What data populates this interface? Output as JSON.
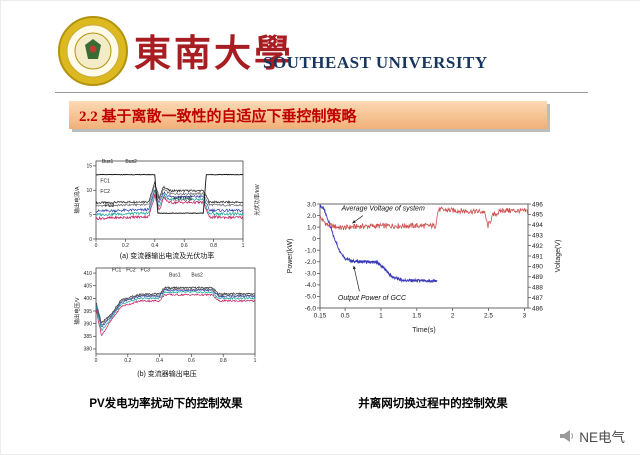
{
  "header": {
    "university_cn": "東南大學",
    "university_en": "SOUTHEAST UNIVERSITY"
  },
  "slide_title": "2.2 基于离散一致性的自适应下垂控制策略",
  "captions": {
    "left_bold": "PV发电功率扰动下的控制效果",
    "right_bold": "并离网切换过程中的控制效果"
  },
  "watermark": {
    "label": "NE电气"
  },
  "colors": {
    "title_text": "#c00000",
    "title_bg": "#f1b078",
    "cn_red": "#a81d22",
    "en_blue": "#17365d",
    "power_blue": "#3a3ab8",
    "voltage_red": "#c9504d"
  },
  "chart_data": [
    {
      "id": "chartA",
      "type": "line",
      "caption": "(a) 变流器输出电流及光伏功率",
      "xlabel": "",
      "ylabel": "输出电流/A",
      "y2label": "光伏功率/kW",
      "xlim": [
        0,
        1
      ],
      "ylim": [
        0,
        16
      ],
      "xticks": [
        0,
        0.2,
        0.4,
        0.6,
        0.8,
        1
      ],
      "xtick_labels": [
        "0",
        "0.2",
        "0.4",
        "0.6",
        "0.8",
        "1"
      ],
      "yticks": [
        0,
        5,
        10,
        15
      ],
      "ytick_labels": [
        "0",
        "5",
        "10",
        "15"
      ],
      "series": [
        {
          "name": "Bus1",
          "color": "#2a2a2a",
          "noise": 0.22,
          "width": 0.7,
          "points": [
            [
              0,
              7.4
            ],
            [
              0.36,
              7.7
            ],
            [
              0.4,
              11.6
            ],
            [
              0.43,
              8.4
            ],
            [
              0.46,
              10.8
            ],
            [
              0.5,
              9.9
            ],
            [
              0.73,
              9.9
            ],
            [
              0.77,
              7.6
            ],
            [
              1,
              7.5
            ]
          ]
        },
        {
          "name": "Bus2",
          "color": "#6a6a6a",
          "noise": 0.22,
          "width": 0.7,
          "points": [
            [
              0,
              6.8
            ],
            [
              0.36,
              7.1
            ],
            [
              0.4,
              11.0
            ],
            [
              0.43,
              7.9
            ],
            [
              0.46,
              10.2
            ],
            [
              0.5,
              9.3
            ],
            [
              0.73,
              9.3
            ],
            [
              0.77,
              7.0
            ],
            [
              1,
              6.9
            ]
          ]
        },
        {
          "name": "FC1",
          "color": "#3344aa",
          "noise": 0.28,
          "width": 0.7,
          "points": [
            [
              0,
              5.7
            ],
            [
              0.36,
              6.0
            ],
            [
              0.4,
              10.3
            ],
            [
              0.43,
              7.2
            ],
            [
              0.46,
              9.6
            ],
            [
              0.5,
              8.7
            ],
            [
              0.73,
              8.7
            ],
            [
              0.77,
              5.9
            ],
            [
              1,
              5.8
            ]
          ]
        },
        {
          "name": "FC2",
          "color": "#17a398",
          "noise": 0.28,
          "width": 0.7,
          "points": [
            [
              0,
              5.0
            ],
            [
              0.36,
              5.3
            ],
            [
              0.4,
              9.7
            ],
            [
              0.43,
              6.5
            ],
            [
              0.46,
              9.0
            ],
            [
              0.5,
              8.1
            ],
            [
              0.73,
              8.1
            ],
            [
              0.77,
              5.2
            ],
            [
              1,
              5.1
            ]
          ]
        },
        {
          "name": "FC3",
          "color": "#c2185b",
          "noise": 0.28,
          "width": 0.7,
          "points": [
            [
              0,
              4.2
            ],
            [
              0.36,
              4.6
            ],
            [
              0.4,
              9.1
            ],
            [
              0.43,
              5.8
            ],
            [
              0.46,
              8.4
            ],
            [
              0.5,
              7.5
            ],
            [
              0.73,
              7.5
            ],
            [
              0.77,
              4.5
            ],
            [
              1,
              4.4
            ]
          ]
        },
        {
          "name": "光伏功率",
          "color": "#111111",
          "noise": 0.06,
          "width": 0.9,
          "points": [
            [
              0,
              13.2
            ],
            [
              0.4,
              13.2
            ],
            [
              0.42,
              5.3
            ],
            [
              0.73,
              5.3
            ],
            [
              0.75,
              13.2
            ],
            [
              1,
              13.2
            ]
          ]
        }
      ],
      "labels": [
        {
          "text": "Bus1",
          "x": 0.04,
          "y": 15.6,
          "color": "#222222"
        },
        {
          "text": "Bus2",
          "x": 0.2,
          "y": 15.6,
          "color": "#222222"
        },
        {
          "text": "FC1",
          "x": 0.03,
          "y": 11.6,
          "color": "#222222"
        },
        {
          "text": "FC2",
          "x": 0.03,
          "y": 9.4,
          "color": "#222222"
        },
        {
          "text": "FC3",
          "x": 0.06,
          "y": 6.6,
          "color": "#222222"
        },
        {
          "text": "光伏功率",
          "x": 0.52,
          "y": 7.9,
          "color": "#111111"
        }
      ]
    },
    {
      "id": "chartB",
      "type": "line",
      "caption": "(b) 变流器输出电压",
      "xlabel": "",
      "ylabel": "输出电压/V",
      "xlim": [
        0,
        1
      ],
      "ylim": [
        378,
        412
      ],
      "xticks": [
        0,
        0.2,
        0.4,
        0.6,
        0.8,
        1
      ],
      "xtick_labels": [
        "0",
        "0.2",
        "0.4",
        "0.6",
        "0.8",
        "1"
      ],
      "yticks": [
        380,
        385,
        390,
        395,
        400,
        405,
        410
      ],
      "ytick_labels": [
        "380",
        "385",
        "390",
        "395",
        "400",
        "405",
        "410"
      ],
      "series": [
        {
          "name": "Bus1",
          "color": "#2a2a2a",
          "noise": 0.35,
          "width": 0.7,
          "points": [
            [
              0,
              398.6
            ],
            [
              0.035,
              390.2
            ],
            [
              0.09,
              393.4
            ],
            [
              0.16,
              399.4
            ],
            [
              0.28,
              401.8
            ],
            [
              0.4,
              401.8
            ],
            [
              0.43,
              404.2
            ],
            [
              0.73,
              404.2
            ],
            [
              0.77,
              401.8
            ],
            [
              1,
              401.8
            ]
          ]
        },
        {
          "name": "Bus2",
          "color": "#6a6a6a",
          "noise": 0.35,
          "width": 0.7,
          "points": [
            [
              0,
              398.0
            ],
            [
              0.035,
              389.4
            ],
            [
              0.09,
              392.9
            ],
            [
              0.16,
              398.9
            ],
            [
              0.28,
              401.2
            ],
            [
              0.4,
              401.2
            ],
            [
              0.43,
              403.6
            ],
            [
              0.73,
              403.6
            ],
            [
              0.77,
              401.2
            ],
            [
              1,
              401.2
            ]
          ]
        },
        {
          "name": "FC1",
          "color": "#3344aa",
          "noise": 0.35,
          "width": 0.7,
          "points": [
            [
              0,
              397.5
            ],
            [
              0.035,
              388.5
            ],
            [
              0.09,
              392.5
            ],
            [
              0.16,
              398.5
            ],
            [
              0.28,
              400.8
            ],
            [
              0.4,
              400.8
            ],
            [
              0.43,
              403.2
            ],
            [
              0.73,
              403.2
            ],
            [
              0.77,
              400.8
            ],
            [
              1,
              400.8
            ]
          ]
        },
        {
          "name": "FC2",
          "color": "#17a398",
          "noise": 0.35,
          "width": 0.7,
          "points": [
            [
              0,
              396.8
            ],
            [
              0.035,
              387.3
            ],
            [
              0.09,
              391.8
            ],
            [
              0.16,
              397.8
            ],
            [
              0.28,
              400.0
            ],
            [
              0.4,
              400.0
            ],
            [
              0.43,
              402.4
            ],
            [
              0.73,
              402.4
            ],
            [
              0.77,
              400.0
            ],
            [
              1,
              400.0
            ]
          ]
        },
        {
          "name": "FC3",
          "color": "#c2185b",
          "noise": 0.35,
          "width": 0.7,
          "points": [
            [
              0,
              395.8
            ],
            [
              0.035,
              385.2
            ],
            [
              0.09,
              390.8
            ],
            [
              0.16,
              396.8
            ],
            [
              0.28,
              399.0
            ],
            [
              0.4,
              399.0
            ],
            [
              0.43,
              401.4
            ],
            [
              0.73,
              401.4
            ],
            [
              0.77,
              399.0
            ],
            [
              1,
              399.0
            ]
          ]
        }
      ],
      "labels": [
        {
          "text": "FC1",
          "x": 0.1,
          "y": 410.6,
          "color": "#222222"
        },
        {
          "text": "FC2",
          "x": 0.19,
          "y": 410.6,
          "color": "#222222"
        },
        {
          "text": "FC3",
          "x": 0.28,
          "y": 410.6,
          "color": "#222222"
        },
        {
          "text": "Bus1",
          "x": 0.46,
          "y": 408.6,
          "color": "#222222"
        },
        {
          "text": "Bus2",
          "x": 0.6,
          "y": 408.6,
          "color": "#222222"
        }
      ]
    },
    {
      "id": "chartC",
      "type": "line",
      "caption": "",
      "xlabel": "Time(s)",
      "ylabel": "Power(kW)",
      "y2label": "Voltage(V)",
      "xlim": [
        0.15,
        3.05
      ],
      "ylim": [
        -6,
        3
      ],
      "y2lim": [
        486,
        496
      ],
      "xticks": [
        0.15,
        0.5,
        1,
        1.5,
        2,
        2.5,
        3
      ],
      "xtick_labels": [
        "0.15",
        "0.5",
        "1",
        "1.5",
        "2",
        "2.5",
        "3"
      ],
      "yticks": [
        3,
        2,
        1,
        0,
        -1,
        -2,
        -3,
        -4,
        -5,
        -6
      ],
      "ytick_labels": [
        "3.0",
        "2.0",
        "1.0",
        "0",
        "-1.0",
        "-2.0",
        "-3.0",
        "-4.0",
        "-5.0",
        "-6.0"
      ],
      "y2ticks": [
        486,
        487,
        488,
        489,
        490,
        491,
        492,
        493,
        494,
        495,
        496
      ],
      "y2tick_labels": [
        "486",
        "487",
        "488",
        "489",
        "490",
        "491",
        "492",
        "493",
        "494",
        "495",
        "496"
      ],
      "series": [
        {
          "name": "Output Power of GCC",
          "color": "#3a3ab8",
          "noise": 0.13,
          "width": 0.9,
          "axis": "y",
          "points": [
            [
              0.15,
              2.85
            ],
            [
              0.2,
              2.6
            ],
            [
              0.27,
              1.5
            ],
            [
              0.34,
              0.2
            ],
            [
              0.42,
              -1.0
            ],
            [
              0.5,
              -1.7
            ],
            [
              0.6,
              -1.95
            ],
            [
              0.75,
              -2.0
            ],
            [
              0.95,
              -2.05
            ],
            [
              1.05,
              -2.6
            ],
            [
              1.15,
              -3.3
            ],
            [
              1.3,
              -3.6
            ],
            [
              1.55,
              -3.65
            ],
            [
              1.78,
              -3.7
            ]
          ]
        },
        {
          "name": "Average Voltage of system",
          "color": "#c9504d",
          "noise": 0.26,
          "width": 0.8,
          "axis": "y2",
          "points": [
            [
              0.15,
              494.7
            ],
            [
              0.25,
              494.0
            ],
            [
              0.45,
              493.7
            ],
            [
              0.7,
              493.85
            ],
            [
              1.1,
              493.9
            ],
            [
              1.5,
              493.9
            ],
            [
              1.76,
              493.9
            ],
            [
              1.8,
              495.45
            ],
            [
              2.1,
              495.35
            ],
            [
              2.44,
              495.25
            ],
            [
              2.49,
              493.85
            ],
            [
              2.56,
              494.9
            ],
            [
              2.7,
              495.4
            ],
            [
              3.05,
              495.3
            ]
          ]
        }
      ],
      "annotations": [
        {
          "text": "Average Voltage of system",
          "x": 0.45,
          "y": 2.45,
          "color": "#111111"
        },
        {
          "text": "Output Power of GCC",
          "x": 0.4,
          "y": -5.3,
          "color": "#111111"
        }
      ],
      "arrows": [
        {
          "x1": 0.75,
          "y1": 2.0,
          "x2": 0.6,
          "y2": 494.15,
          "axis2": "y2"
        },
        {
          "x1": 0.7,
          "y1": -4.55,
          "x2": 0.62,
          "y2": -2.35,
          "axis2": "y"
        }
      ]
    }
  ]
}
